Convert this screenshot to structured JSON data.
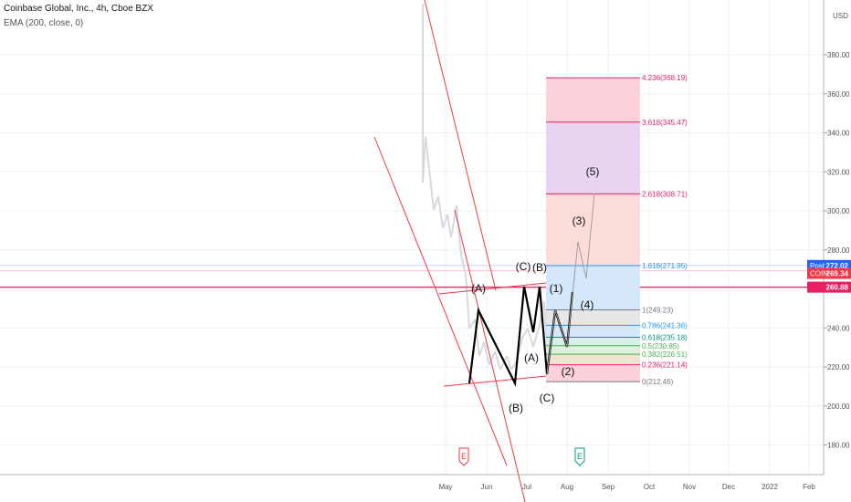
{
  "header": {
    "title": "Coinbase Global, Inc., 4h, Cboe BZX",
    "indicator": "EMA (200, close, 0)"
  },
  "chart_data": {
    "type": "line",
    "currency_label": "USD",
    "ylim": [
      165,
      415
    ],
    "y_ticks": [
      "180.00",
      "200.00",
      "220.00",
      "240.00",
      "260.00",
      "280.00",
      "300.00",
      "320.00",
      "340.00",
      "360.00",
      "380.00"
    ],
    "x_ticks": [
      "May",
      "Jun",
      "Jul",
      "Aug",
      "Sep",
      "Oct",
      "Nov",
      "Dec",
      "2022",
      "Feb"
    ],
    "colors": {
      "fib_line": "#e91e63",
      "fib_blue": "#2196f3",
      "fib_teal": "#009688",
      "fib_gray": "#787b86",
      "channel": "#f23645",
      "wave": "#000000"
    },
    "price_tags": [
      {
        "label": "Post",
        "value": "272.02",
        "price": 272.02,
        "color": "#2962ff"
      },
      {
        "label": "COIN",
        "value": "269.34",
        "price": 269.34,
        "color": "#f23645"
      },
      {
        "label": "",
        "value": "260.88",
        "price": 260.88,
        "color": "#e91e63"
      }
    ],
    "fib_levels": [
      {
        "label": "4.236(368.19)",
        "price": 368.19,
        "color": "#e91e63"
      },
      {
        "label": "3.618(345.47)",
        "price": 345.47,
        "color": "#e91e63"
      },
      {
        "label": "2.618(308.71)",
        "price": 308.71,
        "color": "#e91e63"
      },
      {
        "label": "1.618(271.95)",
        "price": 271.95,
        "color": "#2196f3"
      },
      {
        "label": "1(249.23)",
        "price": 249.23,
        "color": "#787b86"
      },
      {
        "label": "0.786(241.36)",
        "price": 241.36,
        "color": "#2196f3"
      },
      {
        "label": "0.618(235.18)",
        "price": 235.18,
        "color": "#009688"
      },
      {
        "label": "0.5(230.85)",
        "price": 230.85,
        "color": "#4caf50"
      },
      {
        "label": "0.382(226.51)",
        "price": 226.51,
        "color": "#4caf50"
      },
      {
        "label": "0.236(221.14)",
        "price": 221.14,
        "color": "#e91e63"
      },
      {
        "label": "0(212.46)",
        "price": 212.46,
        "color": "#787b86"
      }
    ],
    "wave_labels": [
      "(A)",
      "(B)",
      "(C)",
      "(A)",
      "(B)",
      "(C)",
      "(1)",
      "(2)",
      "(3)",
      "(4)",
      "(5)"
    ],
    "markers": [
      {
        "label": "E",
        "color": "#f23645"
      },
      {
        "label": "E",
        "color": "#009688"
      }
    ]
  }
}
